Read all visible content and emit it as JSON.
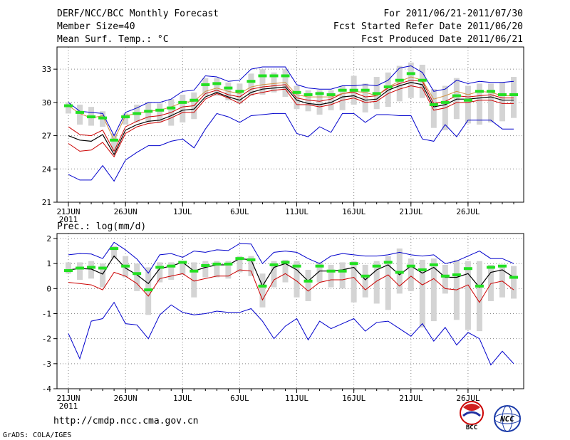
{
  "header": {
    "title": "DERF/NCC/BCC Monthly Forecast",
    "member_size": "Member Size=40",
    "variable": "Mean Surf. Temp.: °C",
    "for_period": "For 2011/06/21-2011/07/30",
    "fcst_started": "Fcst Started Refer Date 2011/06/20",
    "fcst_produced": "Fcst Produced Date 2011/06/21"
  },
  "footer": {
    "url": "http://cmdp.ncc.cma.gov.cn",
    "grads": "GrADS: COLA/IGES",
    "logo_bcc": "BCC",
    "logo_ncc": "NCC"
  },
  "colors": {
    "box": "#d4d4d4",
    "median": "#22e022",
    "ens_mean": "#000000",
    "max_line": "#0000cc",
    "min_line": "#0000cc",
    "q_upper": "#cc0000",
    "q_lower": "#cc0000",
    "upper_q_orange": "#d09040"
  },
  "chart_data": [
    {
      "type": "box-whisker-line",
      "title": "Mean Surf. Temp.: °C",
      "x": [
        "21JUN",
        "22",
        "23",
        "24",
        "25",
        "26JUN",
        "27",
        "28",
        "29",
        "30",
        "1JUL",
        "2",
        "3",
        "4",
        "5",
        "6JUL",
        "7",
        "8",
        "9",
        "10",
        "11JUL",
        "12",
        "13",
        "14",
        "15",
        "16JUL",
        "17",
        "18",
        "19",
        "20",
        "21JUL",
        "22",
        "23",
        "24",
        "25",
        "26JUL",
        "27",
        "28",
        "29",
        "30"
      ],
      "x_ticks": [
        "21JUN",
        "26JUN",
        "1JUL",
        "6JUL",
        "11JUL",
        "16JUL",
        "21JUL",
        "26JUL"
      ],
      "x_sub": "2011",
      "ylim": [
        21,
        35
      ],
      "y_ticks": [
        "21",
        "24",
        "27",
        "30",
        "33"
      ],
      "series": [
        {
          "name": "max",
          "values": [
            30.0,
            29.2,
            29.1,
            29.0,
            27.0,
            29.1,
            29.5,
            30.0,
            30.0,
            30.3,
            31.0,
            31.1,
            32.4,
            32.3,
            31.9,
            32.0,
            33.0,
            33.2,
            33.2,
            33.2,
            31.6,
            31.3,
            31.2,
            31.2,
            31.5,
            31.5,
            31.6,
            31.5,
            32.0,
            33.1,
            33.3,
            32.7,
            31.0,
            31.2,
            32.0,
            31.7,
            31.9,
            31.8,
            31.8,
            31.9
          ]
        },
        {
          "name": "upper",
          "values": [
            29.7,
            29.0,
            28.6,
            28.8,
            26.6,
            28.8,
            29.0,
            29.2,
            29.3,
            29.6,
            30.0,
            30.1,
            31.0,
            31.3,
            31.0,
            30.8,
            31.4,
            31.6,
            31.7,
            31.8,
            30.7,
            30.5,
            30.5,
            30.5,
            30.8,
            31.0,
            30.9,
            30.6,
            31.4,
            31.9,
            32.3,
            32.0,
            30.3,
            30.6,
            31.0,
            30.7,
            31.0,
            30.9,
            30.6,
            30.6
          ]
        },
        {
          "name": "mean",
          "values": [
            27.0,
            26.6,
            26.5,
            27.1,
            25.3,
            27.5,
            28.0,
            28.3,
            28.4,
            28.8,
            29.3,
            29.4,
            30.5,
            30.9,
            30.5,
            30.2,
            30.9,
            31.2,
            31.3,
            31.4,
            30.2,
            29.9,
            29.8,
            30.0,
            30.5,
            30.6,
            30.2,
            30.3,
            31.1,
            31.5,
            31.8,
            31.6,
            29.6,
            29.8,
            30.3,
            30.3,
            30.4,
            30.5,
            30.2,
            30.2
          ]
        },
        {
          "name": "lower",
          "values": [
            26.3,
            25.6,
            25.7,
            26.4,
            25.1,
            27.2,
            27.8,
            28.1,
            28.2,
            28.6,
            29.1,
            29.1,
            30.3,
            30.8,
            30.4,
            29.9,
            30.7,
            30.9,
            31.1,
            31.2,
            29.8,
            29.8,
            29.6,
            29.8,
            30.2,
            30.4,
            30.0,
            30.1,
            30.8,
            31.2,
            31.5,
            31.3,
            29.3,
            29.5,
            30.0,
            30.0,
            30.2,
            30.2,
            29.9,
            29.9
          ]
        },
        {
          "name": "q_low_red",
          "values": [
            27.8,
            27.1,
            27.0,
            27.5,
            25.6,
            27.8,
            28.3,
            28.7,
            28.8,
            29.1,
            29.6,
            29.7,
            30.8,
            31.1,
            30.7,
            30.5,
            31.2,
            31.4,
            31.5,
            31.6,
            30.4,
            30.2,
            30.1,
            30.3,
            30.8,
            30.9,
            30.5,
            30.6,
            31.3,
            31.7,
            32.0,
            31.9,
            29.9,
            30.1,
            30.6,
            30.5,
            30.6,
            30.7,
            30.4,
            30.4
          ]
        },
        {
          "name": "min",
          "values": [
            23.5,
            23.0,
            23.0,
            24.3,
            22.9,
            24.8,
            25.5,
            26.1,
            26.1,
            26.5,
            26.7,
            25.9,
            27.6,
            29.0,
            28.7,
            28.2,
            28.8,
            28.9,
            29.0,
            29.0,
            27.2,
            26.9,
            27.8,
            27.3,
            29.0,
            29.0,
            28.2,
            28.9,
            28.9,
            28.8,
            28.8,
            26.7,
            26.5,
            28.0,
            26.9,
            28.4,
            28.4,
            28.4,
            27.6,
            27.6
          ]
        },
        {
          "name": "median",
          "values": [
            29.7,
            29.1,
            28.7,
            28.6,
            26.6,
            28.7,
            29.0,
            29.2,
            29.3,
            29.5,
            30.0,
            30.2,
            31.6,
            31.7,
            31.3,
            31.0,
            31.9,
            32.4,
            32.4,
            32.4,
            30.9,
            30.7,
            30.8,
            30.7,
            31.1,
            31.1,
            31.1,
            30.8,
            31.4,
            32.0,
            32.6,
            32.0,
            29.8,
            30.0,
            30.6,
            30.2,
            31.0,
            31.0,
            30.7,
            30.7
          ]
        },
        {
          "name": "box_top",
          "values": [
            30.0,
            29.8,
            29.6,
            29.2,
            27.2,
            29.0,
            29.8,
            30.0,
            29.9,
            30.3,
            30.7,
            30.9,
            32.2,
            32.2,
            31.8,
            31.7,
            32.6,
            33.0,
            32.7,
            33.0,
            31.5,
            31.1,
            31.1,
            31.1,
            31.5,
            32.4,
            31.7,
            32.3,
            32.7,
            33.3,
            33.6,
            33.4,
            31.2,
            31.5,
            32.2,
            31.5,
            31.7,
            31.7,
            31.8,
            32.3
          ]
        },
        {
          "name": "box_bottom",
          "values": [
            29.0,
            28.0,
            27.9,
            27.8,
            25.6,
            28.0,
            28.2,
            28.2,
            28.2,
            27.9,
            28.2,
            28.5,
            30.6,
            30.6,
            30.2,
            29.9,
            30.6,
            30.7,
            30.9,
            30.5,
            29.4,
            29.2,
            28.9,
            29.3,
            29.3,
            29.8,
            29.1,
            29.4,
            29.6,
            30.1,
            30.4,
            30.4,
            27.7,
            27.5,
            28.5,
            28.1,
            28.0,
            28.2,
            28.3,
            28.6
          ]
        }
      ]
    },
    {
      "type": "box-whisker-line",
      "title": "Prec.: log(mm/d)",
      "x": [
        "21JUN",
        "22",
        "23",
        "24",
        "25",
        "26JUN",
        "27",
        "28",
        "29",
        "30",
        "1JUL",
        "2",
        "3",
        "4",
        "5",
        "6JUL",
        "7",
        "8",
        "9",
        "10",
        "11JUL",
        "12",
        "13",
        "14",
        "15",
        "16JUL",
        "17",
        "18",
        "19",
        "20",
        "21JUL",
        "22",
        "23",
        "24",
        "25",
        "26JUL",
        "27",
        "28",
        "29",
        "30"
      ],
      "x_ticks": [
        "21JUN",
        "26JUN",
        "1JUL",
        "6JUL",
        "11JUL",
        "16JUL",
        "21JUL",
        "26JUL"
      ],
      "x_sub": "2011",
      "ylim": [
        -4,
        2.2
      ],
      "y_ticks": [
        "-4",
        "-3",
        "-2",
        "-1",
        "0",
        "1",
        "2"
      ],
      "series": [
        {
          "name": "max",
          "values": [
            1.35,
            1.4,
            1.38,
            1.2,
            1.85,
            1.55,
            1.18,
            0.62,
            1.35,
            1.4,
            1.25,
            1.5,
            1.45,
            1.55,
            1.52,
            1.8,
            1.78,
            1.0,
            1.45,
            1.5,
            1.45,
            1.2,
            1.0,
            1.3,
            1.4,
            1.35,
            1.3,
            1.3,
            1.35,
            1.45,
            1.35,
            1.3,
            1.35,
            1.0,
            1.1,
            1.3,
            1.5,
            1.2,
            1.2,
            1.0
          ]
        },
        {
          "name": "mean",
          "values": [
            0.75,
            0.8,
            0.78,
            0.58,
            1.3,
            0.82,
            0.55,
            0.2,
            0.8,
            0.9,
            1.05,
            0.7,
            0.85,
            0.95,
            0.95,
            1.2,
            1.15,
            0.1,
            0.85,
            1.0,
            0.75,
            0.3,
            0.7,
            0.7,
            0.75,
            0.85,
            0.35,
            0.75,
            0.95,
            0.55,
            0.9,
            0.62,
            0.85,
            0.45,
            0.45,
            0.6,
            0.05,
            0.65,
            0.75,
            0.45
          ]
        },
        {
          "name": "lower_red",
          "values": [
            0.25,
            0.2,
            0.15,
            -0.05,
            0.65,
            0.5,
            0.2,
            -0.3,
            0.4,
            0.5,
            0.6,
            0.3,
            0.4,
            0.5,
            0.5,
            0.75,
            0.7,
            -0.45,
            0.35,
            0.6,
            0.3,
            -0.1,
            0.25,
            0.35,
            0.35,
            0.45,
            -0.05,
            0.3,
            0.55,
            0.1,
            0.5,
            0.15,
            0.4,
            0.0,
            -0.05,
            0.15,
            -0.55,
            0.2,
            0.3,
            -0.05
          ]
        },
        {
          "name": "min",
          "values": [
            -1.8,
            -2.8,
            -1.3,
            -1.2,
            -0.55,
            -1.4,
            -1.45,
            -2.0,
            -1.05,
            -0.65,
            -0.95,
            -1.05,
            -1.0,
            -0.9,
            -0.95,
            -0.95,
            -0.8,
            -1.3,
            -2.0,
            -1.5,
            -1.2,
            -2.05,
            -1.3,
            -1.6,
            -1.4,
            -1.2,
            -1.7,
            -1.35,
            -1.3,
            -1.6,
            -1.9,
            -1.4,
            -2.1,
            -1.55,
            -2.25,
            -1.75,
            -2.0,
            -3.05,
            -2.5,
            -3.0
          ]
        },
        {
          "name": "median",
          "values": [
            0.72,
            0.82,
            0.85,
            0.82,
            1.6,
            0.9,
            0.6,
            -0.05,
            0.85,
            0.9,
            1.05,
            0.7,
            0.92,
            0.98,
            0.98,
            1.2,
            1.15,
            0.1,
            0.95,
            1.05,
            0.9,
            0.3,
            0.9,
            0.7,
            0.7,
            1.0,
            0.5,
            0.9,
            1.05,
            0.65,
            0.9,
            0.75,
            0.95,
            0.5,
            0.55,
            0.8,
            0.1,
            0.85,
            0.9,
            0.45
          ]
        },
        {
          "name": "box_top",
          "values": [
            1.05,
            1.05,
            1.1,
            1.0,
            1.7,
            1.3,
            1.0,
            0.85,
            1.05,
            1.05,
            1.1,
            1.05,
            1.1,
            1.1,
            1.1,
            1.3,
            1.3,
            0.6,
            1.1,
            1.15,
            1.1,
            0.75,
            1.05,
            0.95,
            1.05,
            1.1,
            0.95,
            1.1,
            1.3,
            1.6,
            1.2,
            1.15,
            1.2,
            0.95,
            1.15,
            1.1,
            1.1,
            0.95,
            0.9,
            0.9
          ]
        },
        {
          "name": "box_bottom",
          "values": [
            0.6,
            0.35,
            0.4,
            0.05,
            1.2,
            0.45,
            -0.1,
            -1.05,
            0.25,
            0.35,
            0.55,
            -0.35,
            0.45,
            0.45,
            0.4,
            0.65,
            0.5,
            -0.75,
            0.05,
            0.25,
            -0.35,
            -0.5,
            0.25,
            0.05,
            0.0,
            -0.55,
            -0.35,
            -0.6,
            -0.85,
            -0.2,
            -0.1,
            -1.55,
            -1.3,
            -0.2,
            -1.25,
            -1.65,
            -1.7,
            -0.5,
            -0.35,
            -0.4
          ]
        }
      ]
    }
  ],
  "panel2_label": "Prec.: log(mm/d)"
}
